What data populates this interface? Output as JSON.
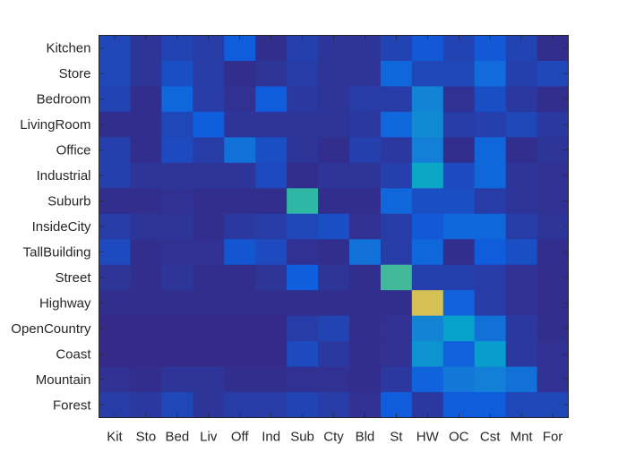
{
  "chart_data": {
    "type": "heatmap",
    "title": "",
    "xlabel": "",
    "ylabel": "",
    "colormap": "parula",
    "clim": [
      0,
      1
    ],
    "row_labels": [
      "Kitchen",
      "Store",
      "Bedroom",
      "LivingRoom",
      "Office",
      "Industrial",
      "Suburb",
      "InsideCity",
      "TallBuilding",
      "Street",
      "Highway",
      "OpenCountry",
      "Coast",
      "Mountain",
      "Forest"
    ],
    "col_labels": [
      "Kit",
      "Sto",
      "Bed",
      "Liv",
      "Off",
      "Ind",
      "Sub",
      "Cty",
      "Bld",
      "St",
      "HW",
      "OC",
      "Cst",
      "Mnt",
      "For"
    ],
    "values": [
      [
        0.08,
        0.03,
        0.07,
        0.05,
        0.14,
        0.01,
        0.06,
        0.03,
        0.03,
        0.07,
        0.13,
        0.07,
        0.13,
        0.07,
        0.01
      ],
      [
        0.08,
        0.03,
        0.1,
        0.05,
        0.01,
        0.03,
        0.05,
        0.03,
        0.03,
        0.18,
        0.08,
        0.08,
        0.2,
        0.06,
        0.08
      ],
      [
        0.07,
        0.01,
        0.18,
        0.05,
        0.02,
        0.14,
        0.04,
        0.03,
        0.05,
        0.05,
        0.3,
        0.02,
        0.1,
        0.04,
        0.01
      ],
      [
        0.01,
        0.01,
        0.08,
        0.15,
        0.03,
        0.03,
        0.03,
        0.03,
        0.04,
        0.18,
        0.32,
        0.05,
        0.06,
        0.08,
        0.04
      ],
      [
        0.06,
        0.01,
        0.09,
        0.05,
        0.22,
        0.1,
        0.03,
        0.01,
        0.06,
        0.04,
        0.28,
        0.01,
        0.18,
        0.01,
        0.03
      ],
      [
        0.06,
        0.03,
        0.03,
        0.03,
        0.03,
        0.09,
        0.01,
        0.03,
        0.03,
        0.06,
        0.45,
        0.09,
        0.18,
        0.03,
        0.02
      ],
      [
        0.01,
        0.01,
        0.02,
        0.01,
        0.01,
        0.01,
        0.57,
        0.01,
        0.01,
        0.18,
        0.1,
        0.1,
        0.05,
        0.03,
        0.02
      ],
      [
        0.05,
        0.03,
        0.03,
        0.01,
        0.04,
        0.05,
        0.08,
        0.1,
        0.02,
        0.05,
        0.13,
        0.18,
        0.18,
        0.05,
        0.03
      ],
      [
        0.09,
        0.01,
        0.02,
        0.02,
        0.12,
        0.09,
        0.02,
        0.01,
        0.22,
        0.05,
        0.18,
        0.01,
        0.14,
        0.1,
        0.01
      ],
      [
        0.03,
        0.01,
        0.03,
        0.01,
        0.01,
        0.03,
        0.15,
        0.03,
        0.01,
        0.6,
        0.06,
        0.06,
        0.05,
        0.02,
        0.01
      ],
      [
        0.01,
        0.01,
        0.01,
        0.01,
        0.01,
        0.01,
        0.01,
        0.01,
        0.01,
        0.01,
        0.87,
        0.17,
        0.05,
        0.02,
        0.01
      ],
      [
        0.0,
        0.0,
        0.0,
        0.0,
        0.0,
        0.0,
        0.05,
        0.07,
        0.01,
        0.02,
        0.3,
        0.42,
        0.22,
        0.04,
        0.01
      ],
      [
        0.0,
        0.0,
        0.0,
        0.0,
        0.0,
        0.0,
        0.09,
        0.04,
        0.01,
        0.02,
        0.36,
        0.16,
        0.4,
        0.04,
        0.02
      ],
      [
        0.02,
        0.01,
        0.03,
        0.03,
        0.01,
        0.01,
        0.02,
        0.02,
        0.01,
        0.04,
        0.17,
        0.25,
        0.28,
        0.22,
        0.02
      ],
      [
        0.05,
        0.04,
        0.08,
        0.03,
        0.05,
        0.05,
        0.07,
        0.05,
        0.02,
        0.14,
        0.04,
        0.14,
        0.14,
        0.08,
        0.08
      ]
    ],
    "grid": false,
    "legend": "none"
  }
}
